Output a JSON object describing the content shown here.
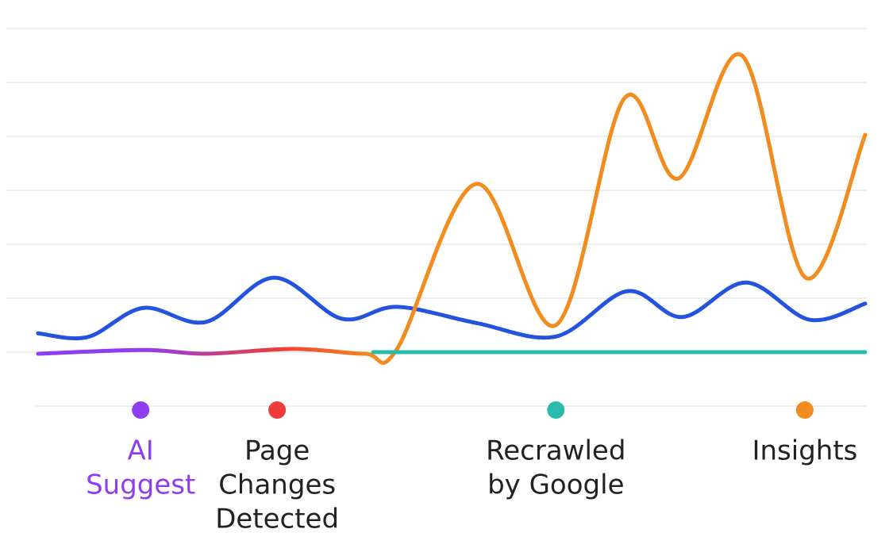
{
  "chart_data": {
    "type": "line",
    "xlim": [
      0,
      100
    ],
    "ylim": [
      -1,
      6
    ],
    "yticks": [
      -1,
      0,
      1,
      2,
      3,
      4,
      5,
      6
    ],
    "grid": true,
    "series": [
      {
        "color": "#2453e0",
        "x": [
          0,
          6,
          12.7,
          20.3,
          28.5,
          36.7,
          43.4,
          53,
          62.6,
          71.2,
          77.9,
          85.6,
          93.3,
          100
        ],
        "values": [
          0.35,
          0.28,
          0.82,
          0.56,
          1.38,
          0.62,
          0.84,
          0.54,
          0.29,
          1.13,
          0.65,
          1.29,
          0.6,
          0.9
        ]
      },
      {
        "color": "#f28c1e",
        "gradient": true,
        "x": [
          0,
          12.7,
          20.3,
          30.9,
          39.5,
          43.4,
          53,
          62.6,
          70.9,
          77.4,
          85.1,
          92.8,
          100
        ],
        "values": [
          -0.03,
          0.04,
          -0.03,
          0.06,
          -0.03,
          0.06,
          3.12,
          0.5,
          4.71,
          3.22,
          5.5,
          1.38,
          4.03
        ]
      },
      {
        "color": "#2bbbad",
        "x": [
          40.5,
          100
        ],
        "values": [
          0,
          0
        ]
      }
    ],
    "events": [
      {
        "x": 12.4,
        "color": "#8e3ef0",
        "label_color": "#8e3ef0",
        "label": [
          "AI",
          "Suggest"
        ]
      },
      {
        "x": 28.9,
        "color": "#ef3b3b",
        "label_color": "#222222",
        "label": [
          "Page",
          "Changes",
          "Detected"
        ]
      },
      {
        "x": 62.6,
        "color": "#2bbbad",
        "label_color": "#222222",
        "label": [
          "Recrawled",
          "by Google"
        ]
      },
      {
        "x": 92.7,
        "color": "#f28c1e",
        "label_color": "#222222",
        "label": [
          "Insights"
        ]
      }
    ]
  }
}
